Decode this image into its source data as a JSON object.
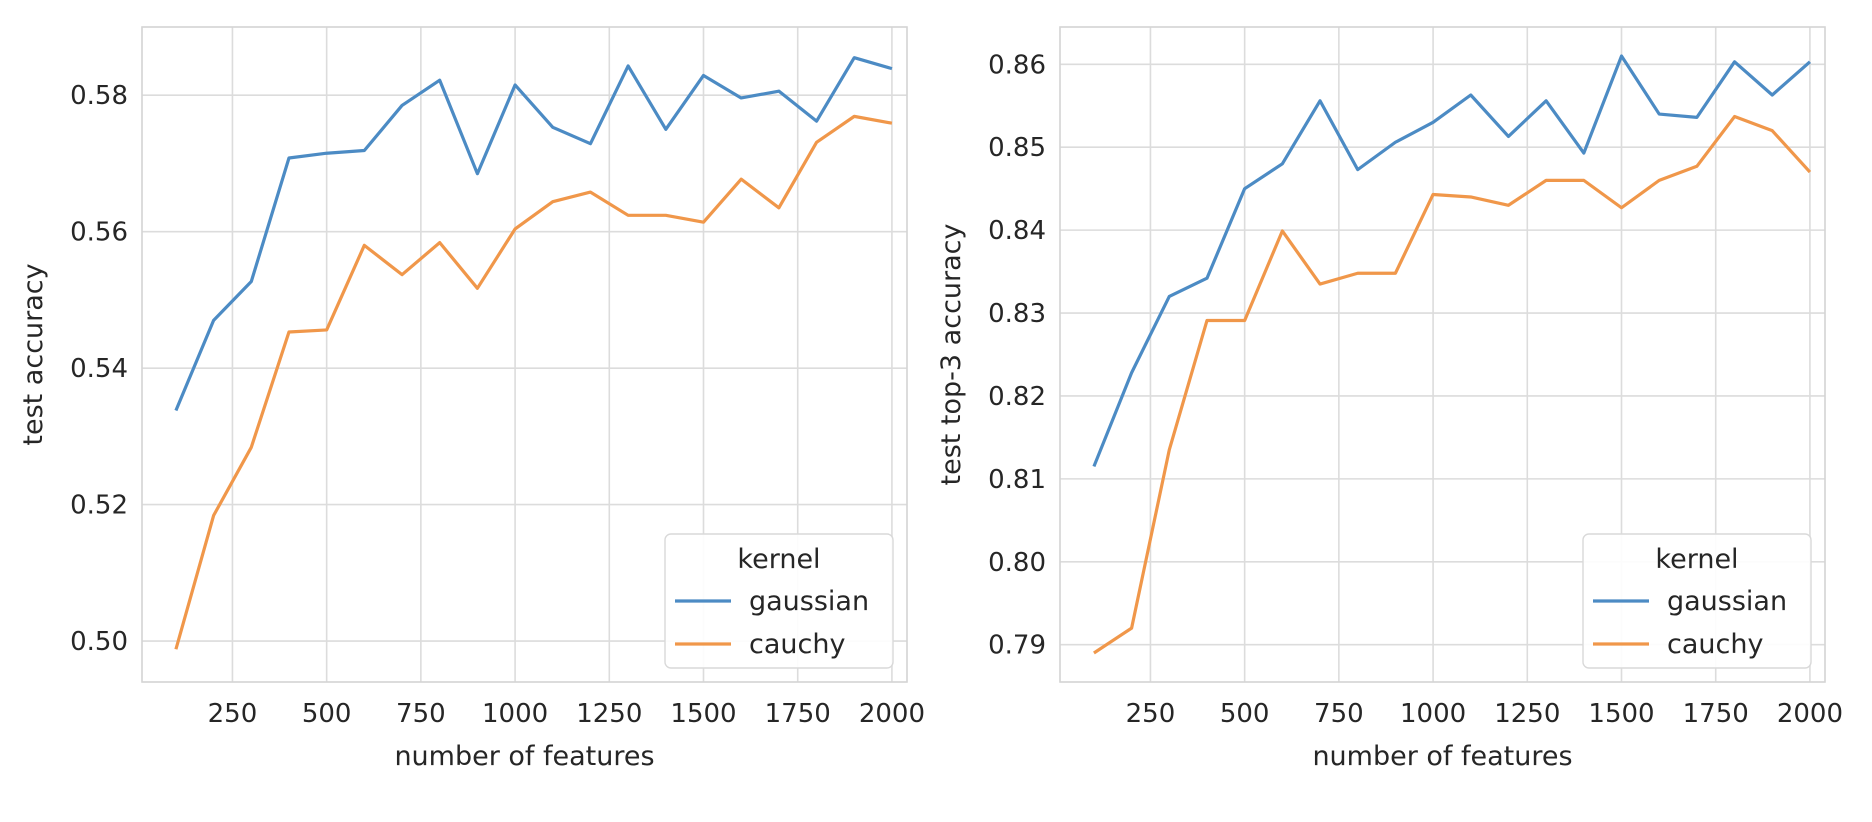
{
  "chart_data": [
    {
      "type": "line",
      "title": "",
      "xlabel": "number of features",
      "ylabel": "test accuracy",
      "xlim": [
        10,
        2040
      ],
      "ylim": [
        0.494,
        0.59
      ],
      "xticks": [
        250,
        500,
        750,
        1000,
        1250,
        1500,
        1750,
        2000
      ],
      "xtick_labels": [
        "250",
        "500",
        "750",
        "1000",
        "1250",
        "1500",
        "1750",
        "2000"
      ],
      "yticks": [
        0.5,
        0.52,
        0.54,
        0.56,
        0.58
      ],
      "ytick_labels": [
        "0.50",
        "0.52",
        "0.54",
        "0.56",
        "0.58"
      ],
      "grid": true,
      "legend": {
        "title": "kernel",
        "placement": "lower-right"
      },
      "x": [
        100,
        200,
        300,
        400,
        500,
        600,
        700,
        800,
        900,
        1000,
        1100,
        1200,
        1300,
        1400,
        1500,
        1600,
        1700,
        1800,
        1900,
        2000
      ],
      "series": [
        {
          "name": "gaussian",
          "color": "#4c8bc4",
          "values": [
            0.5338,
            0.547,
            0.5527,
            0.5708,
            0.5715,
            0.5719,
            0.5785,
            0.5822,
            0.5685,
            0.5815,
            0.5753,
            0.5729,
            0.5843,
            0.575,
            0.5829,
            0.5796,
            0.5806,
            0.5762,
            0.5855,
            0.5839
          ]
        },
        {
          "name": "cauchy",
          "color": "#f0974a",
          "values": [
            0.4988,
            0.5184,
            0.5284,
            0.5453,
            0.5456,
            0.558,
            0.5537,
            0.5584,
            0.5517,
            0.5604,
            0.5644,
            0.5658,
            0.5624,
            0.5624,
            0.5614,
            0.5677,
            0.5635,
            0.5731,
            0.5769,
            0.5759
          ]
        }
      ]
    },
    {
      "type": "line",
      "title": "",
      "xlabel": "number of features",
      "ylabel": "test top-3 accuracy",
      "xlim": [
        10,
        2040
      ],
      "ylim": [
        0.7855,
        0.8645
      ],
      "xticks": [
        250,
        500,
        750,
        1000,
        1250,
        1500,
        1750,
        2000
      ],
      "xtick_labels": [
        "250",
        "500",
        "750",
        "1000",
        "1250",
        "1500",
        "1750",
        "2000"
      ],
      "yticks": [
        0.79,
        0.8,
        0.81,
        0.82,
        0.83,
        0.84,
        0.85,
        0.86
      ],
      "ytick_labels": [
        "0.79",
        "0.80",
        "0.81",
        "0.82",
        "0.83",
        "0.84",
        "0.85",
        "0.86"
      ],
      "grid": true,
      "legend": {
        "title": "kernel",
        "placement": "lower-right"
      },
      "x": [
        100,
        200,
        300,
        400,
        500,
        600,
        700,
        800,
        900,
        1000,
        1100,
        1200,
        1300,
        1400,
        1500,
        1600,
        1700,
        1800,
        1900,
        2000
      ],
      "series": [
        {
          "name": "gaussian",
          "color": "#4c8bc4",
          "values": [
            0.8115,
            0.8228,
            0.832,
            0.8342,
            0.845,
            0.848,
            0.8556,
            0.8473,
            0.8506,
            0.853,
            0.8563,
            0.8513,
            0.8556,
            0.8493,
            0.861,
            0.854,
            0.8536,
            0.8603,
            0.8563,
            0.8603
          ]
        },
        {
          "name": "cauchy",
          "color": "#f0974a",
          "values": [
            0.789,
            0.792,
            0.8135,
            0.8291,
            0.8291,
            0.8399,
            0.8335,
            0.8348,
            0.8348,
            0.8443,
            0.844,
            0.843,
            0.846,
            0.846,
            0.8427,
            0.846,
            0.8477,
            0.8537,
            0.852,
            0.847
          ]
        }
      ]
    }
  ]
}
